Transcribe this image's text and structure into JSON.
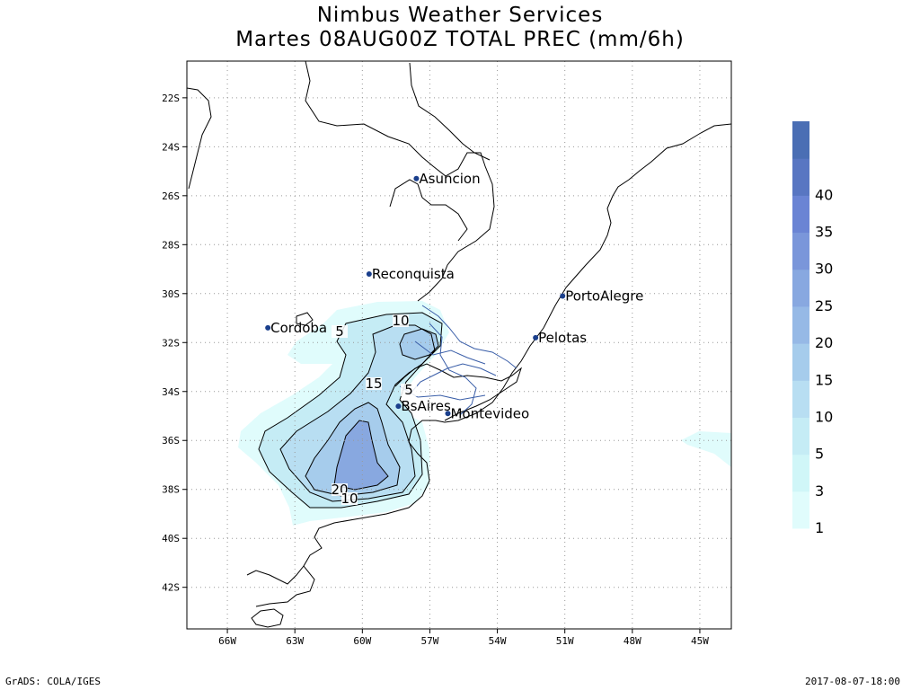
{
  "title": "Nimbus Weather Services",
  "subtitle": "Martes 08AUG00Z TOTAL PREC (mm/6h)",
  "footer": {
    "left": "GrADS: COLA/IGES",
    "right": "2017-08-07-18:00"
  },
  "axes": {
    "lat_labels": [
      "22S",
      "24S",
      "26S",
      "28S",
      "30S",
      "32S",
      "34S",
      "36S",
      "38S",
      "40S",
      "42S"
    ],
    "lon_labels": [
      "66W",
      "63W",
      "60W",
      "57W",
      "54W",
      "51W",
      "48W",
      "45W"
    ]
  },
  "cities": [
    {
      "name": "Asuncion",
      "lon": -57.6,
      "lat": -25.3
    },
    {
      "name": "Reconquista",
      "lon": -59.7,
      "lat": -29.2
    },
    {
      "name": "PortoAlegre",
      "lon": -51.1,
      "lat": -30.1
    },
    {
      "name": "Cordoba",
      "lon": -64.2,
      "lat": -31.4
    },
    {
      "name": "Pelotas",
      "lon": -52.3,
      "lat": -31.8
    },
    {
      "name": "BsAires",
      "lon": -58.4,
      "lat": -34.6
    },
    {
      "name": "Montevideo",
      "lon": -56.2,
      "lat": -34.9
    }
  ],
  "contour_labels": [
    "5",
    "10",
    "15",
    "5",
    "20",
    "10"
  ],
  "colorbar": {
    "labels": [
      "1",
      "3",
      "5",
      "10",
      "15",
      "20",
      "25",
      "30",
      "35",
      "40"
    ],
    "colors": [
      "#e0fcfc",
      "#d0f6f8",
      "#c5ecf5",
      "#b8def2",
      "#a6ccec",
      "#96b9e6",
      "#88a8e0",
      "#7a96da",
      "#6a84d4",
      "#5876c2",
      "#4a6eb4"
    ]
  },
  "precip_colors": {
    "c1": "#e0fcfc",
    "c5": "#c5ecf5",
    "c10": "#b8def2",
    "c15": "#a6ccec",
    "c20": "#96b9e6",
    "c25": "#88a8e0"
  }
}
